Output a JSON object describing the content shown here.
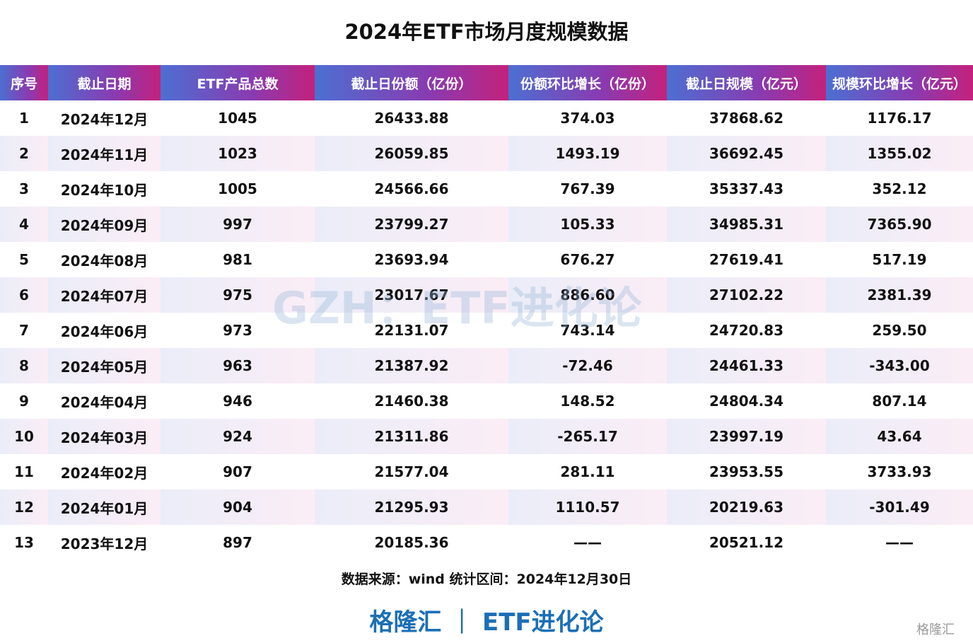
{
  "header": {
    "title": "2024年ETF市场月度规模数据"
  },
  "table": {
    "columns": [
      "序号",
      "截止日期",
      "ETF产品总数",
      "截止日份额（亿份）",
      "份额环比增长（亿份）",
      "截止日规模（亿元）",
      "规模环比增长（亿元）"
    ],
    "rows": [
      [
        "1",
        "2024年12月",
        "1045",
        "26433.88",
        "374.03",
        "37868.62",
        "1176.17"
      ],
      [
        "2",
        "2024年11月",
        "1023",
        "26059.85",
        "1493.19",
        "36692.45",
        "1355.02"
      ],
      [
        "3",
        "2024年10月",
        "1005",
        "24566.66",
        "767.39",
        "35337.43",
        "352.12"
      ],
      [
        "4",
        "2024年09月",
        "997",
        "23799.27",
        "105.33",
        "34985.31",
        "7365.90"
      ],
      [
        "5",
        "2024年08月",
        "981",
        "23693.94",
        "676.27",
        "27619.41",
        "517.19"
      ],
      [
        "6",
        "2024年07月",
        "975",
        "23017.67",
        "886.60",
        "27102.22",
        "2381.39"
      ],
      [
        "7",
        "2024年06月",
        "973",
        "22131.07",
        "743.14",
        "24720.83",
        "259.50"
      ],
      [
        "8",
        "2024年05月",
        "963",
        "21387.92",
        "-72.46",
        "24461.33",
        "-343.00"
      ],
      [
        "9",
        "2024年04月",
        "946",
        "21460.38",
        "148.52",
        "24804.34",
        "807.14"
      ],
      [
        "10",
        "2024年03月",
        "924",
        "21311.86",
        "-265.17",
        "23997.19",
        "43.64"
      ],
      [
        "11",
        "2024年02月",
        "907",
        "21577.04",
        "281.11",
        "23953.55",
        "3733.93"
      ],
      [
        "12",
        "2024年01月",
        "904",
        "21295.93",
        "1110.57",
        "20219.63",
        "-301.49"
      ],
      [
        "13",
        "2023年12月",
        "897",
        "20185.36",
        "——",
        "20521.12",
        "——"
      ]
    ]
  },
  "footer": {
    "source": "数据来源：wind 统计区间：2024年12月30日",
    "brand": "格隆汇 ｜ ETF进化论",
    "watermark": "GZH：ETF进化论",
    "logo": "格隆汇"
  }
}
